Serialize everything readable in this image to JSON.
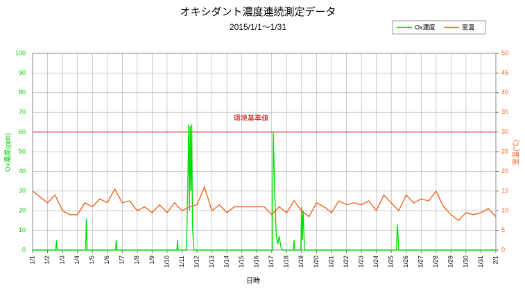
{
  "chart_data": {
    "type": "line",
    "title": "オキシダント濃度連続測定データ",
    "subtitle": "2015/1/1～1/31",
    "xlabel": "日時",
    "ylabel": "Ox濃度(ppb)",
    "y2label": "室温(℃)",
    "xlim": [
      1,
      32
    ],
    "xticks": [
      {
        "value": 1,
        "label": "1/1"
      },
      {
        "value": 2,
        "label": "1/2"
      },
      {
        "value": 3,
        "label": "1/3"
      },
      {
        "value": 4,
        "label": "1/4"
      },
      {
        "value": 5,
        "label": "1/5"
      },
      {
        "value": 6,
        "label": "1/6"
      },
      {
        "value": 7,
        "label": "1/7"
      },
      {
        "value": 8,
        "label": "1/8"
      },
      {
        "value": 9,
        "label": "1/9"
      },
      {
        "value": 10,
        "label": "1/10"
      },
      {
        "value": 11,
        "label": "1/11"
      },
      {
        "value": 12,
        "label": "1/12"
      },
      {
        "value": 13,
        "label": "1/13"
      },
      {
        "value": 14,
        "label": "1/14"
      },
      {
        "value": 15,
        "label": "1/15"
      },
      {
        "value": 16,
        "label": "1/16"
      },
      {
        "value": 17,
        "label": "1/17"
      },
      {
        "value": 18,
        "label": "1/18"
      },
      {
        "value": 19,
        "label": "1/19"
      },
      {
        "value": 20,
        "label": "1/20"
      },
      {
        "value": 21,
        "label": "1/21"
      },
      {
        "value": 22,
        "label": "1/22"
      },
      {
        "value": 23,
        "label": "1/23"
      },
      {
        "value": 24,
        "label": "1/24"
      },
      {
        "value": 25,
        "label": "1/25"
      },
      {
        "value": 26,
        "label": "1/26"
      },
      {
        "value": 27,
        "label": "1/27"
      },
      {
        "value": 28,
        "label": "1/28"
      },
      {
        "value": 29,
        "label": "1/29"
      },
      {
        "value": 30,
        "label": "1/30"
      },
      {
        "value": 31,
        "label": "1/31"
      },
      {
        "value": 32,
        "label": "2/1"
      }
    ],
    "ylim": [
      0,
      100
    ],
    "yticks": [
      0,
      10,
      20,
      30,
      40,
      50,
      60,
      70,
      80,
      90,
      100
    ],
    "y2lim": [
      0,
      50
    ],
    "y2ticks": [
      0,
      5,
      10,
      15,
      20,
      25,
      30,
      35,
      40,
      45,
      50
    ],
    "grid": true,
    "reference": {
      "value": 60,
      "label": "環境基準値",
      "color": "#c00000"
    },
    "series": [
      {
        "name": "Ox濃度",
        "color": "#00dd00",
        "x": [
          1,
          2.55,
          2.6,
          2.65,
          4.55,
          4.6,
          4.65,
          6.55,
          6.6,
          6.65,
          10.65,
          10.7,
          10.75,
          11.3,
          11.4,
          11.45,
          11.5,
          11.55,
          11.6,
          11.65,
          11.7,
          11.8,
          17.05,
          17.1,
          17.2,
          17.3,
          17.4,
          17.5,
          17.6,
          17.7,
          18.45,
          18.5,
          18.55,
          18.95,
          19.0,
          19.05,
          19.1,
          19.2,
          25.35,
          25.4,
          25.45,
          25.5,
          32
        ],
        "values": [
          0,
          0,
          5,
          0,
          0,
          16,
          0,
          0,
          5,
          0,
          0,
          5,
          0,
          0,
          40,
          64,
          20,
          63,
          30,
          64,
          12,
          0,
          0,
          60,
          30,
          8,
          3,
          7,
          2,
          0,
          0,
          5,
          0,
          0,
          22,
          5,
          20,
          0,
          0,
          13,
          8,
          0,
          0
        ]
      },
      {
        "name": "室温",
        "color": "#ee6420",
        "axis": "y2",
        "x": [
          1,
          1.5,
          2,
          2.5,
          3,
          3.5,
          4,
          4.5,
          5,
          5.5,
          6,
          6.5,
          7,
          7.5,
          8,
          8.5,
          9,
          9.5,
          10,
          10.5,
          11,
          11.5,
          12,
          12.5,
          13,
          13.5,
          14,
          14.5,
          15,
          15.5,
          16,
          16.5,
          17,
          17.5,
          18,
          18.5,
          19,
          19.5,
          20,
          20.5,
          21,
          21.5,
          22,
          22.5,
          23,
          23.5,
          24,
          24.5,
          25,
          25.5,
          26,
          26.5,
          27,
          27.5,
          28,
          28.5,
          29,
          29.5,
          30,
          30.5,
          31,
          31.5,
          32
        ],
        "values": [
          15,
          13.5,
          12,
          14,
          10,
          9,
          9,
          12,
          11,
          13,
          12,
          15.5,
          12,
          12.5,
          10,
          11,
          9.5,
          11.5,
          9.5,
          12,
          10,
          11,
          11.5,
          16,
          10,
          11.5,
          9.5,
          11,
          11,
          11,
          11,
          11,
          9,
          11,
          9.5,
          12.5,
          10,
          8.5,
          12,
          11,
          9.5,
          12.5,
          11.5,
          12,
          11.5,
          12.5,
          10,
          14,
          12,
          10,
          14,
          12,
          13,
          12.5,
          15,
          11,
          9,
          7.5,
          9.5,
          9,
          9.5,
          10.5,
          8.5
        ]
      }
    ]
  }
}
